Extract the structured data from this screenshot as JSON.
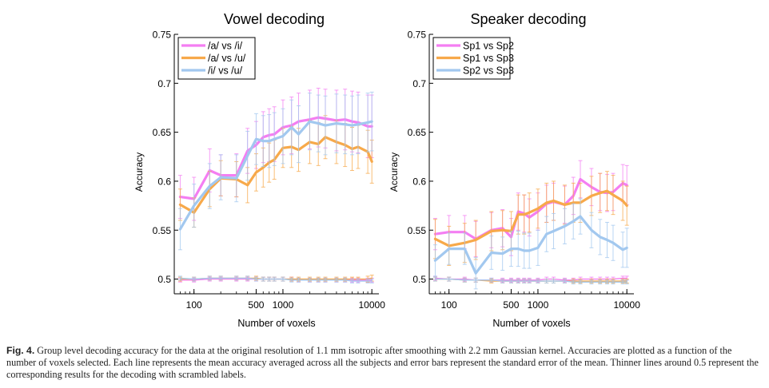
{
  "colors": {
    "pink": "#f47ef2",
    "orange": "#f7a94a",
    "blue": "#a2c8ef",
    "axis": "#000000",
    "text": "#222222"
  },
  "chart_data": [
    {
      "type": "line",
      "title": "Vowel decoding",
      "xlabel": "Number of voxels",
      "ylabel": "Accuracy",
      "xscale": "log",
      "xlim": [
        60,
        12000
      ],
      "ylim": [
        0.485,
        0.75
      ],
      "x_ticks": [
        100,
        500,
        1000,
        10000
      ],
      "x_tick_labels": [
        "100",
        "500",
        "1000",
        "10000"
      ],
      "y_ticks": [
        0.5,
        0.55,
        0.6,
        0.65,
        0.7,
        0.75
      ],
      "y_tick_labels": [
        "0.5",
        "0.55",
        "0.6",
        "0.65",
        "0.7",
        "0.75"
      ],
      "legend_position": "top-left",
      "x": [
        70,
        100,
        150,
        200,
        300,
        400,
        500,
        600,
        700,
        800,
        1000,
        1250,
        1500,
        2000,
        2500,
        3000,
        4000,
        5000,
        6000,
        7000,
        9000,
        10000
      ],
      "series": [
        {
          "name": "/a/ vs /i/",
          "color": "pink",
          "values": [
            0.584,
            0.582,
            0.611,
            0.606,
            0.606,
            0.631,
            0.637,
            0.645,
            0.647,
            0.648,
            0.655,
            0.657,
            0.661,
            0.663,
            0.665,
            0.664,
            0.662,
            0.663,
            0.661,
            0.66,
            0.656,
            0.656
          ],
          "errors": [
            0.022,
            0.022,
            0.022,
            0.021,
            0.022,
            0.023,
            0.024,
            0.026,
            0.027,
            0.028,
            0.028,
            0.029,
            0.029,
            0.03,
            0.03,
            0.03,
            0.031,
            0.031,
            0.031,
            0.031,
            0.032,
            0.032
          ]
        },
        {
          "name": "/a/ vs /u/",
          "color": "orange",
          "values": [
            0.576,
            0.568,
            0.592,
            0.603,
            0.602,
            0.596,
            0.609,
            0.614,
            0.619,
            0.622,
            0.634,
            0.635,
            0.632,
            0.64,
            0.638,
            0.645,
            0.64,
            0.637,
            0.633,
            0.635,
            0.63,
            0.62
          ],
          "errors": [
            0.016,
            0.015,
            0.018,
            0.018,
            0.018,
            0.018,
            0.019,
            0.02,
            0.02,
            0.02,
            0.02,
            0.021,
            0.022,
            0.022,
            0.022,
            0.022,
            0.022,
            0.022,
            0.022,
            0.022,
            0.022,
            0.022
          ]
        },
        {
          "name": "/i/ vs /u/",
          "color": "blue",
          "values": [
            0.551,
            0.575,
            0.595,
            0.604,
            0.603,
            0.626,
            0.643,
            0.641,
            0.641,
            0.643,
            0.646,
            0.655,
            0.648,
            0.661,
            0.659,
            0.657,
            0.659,
            0.658,
            0.657,
            0.658,
            0.66,
            0.661
          ],
          "errors": [
            0.021,
            0.022,
            0.023,
            0.023,
            0.024,
            0.025,
            0.026,
            0.026,
            0.027,
            0.027,
            0.028,
            0.028,
            0.029,
            0.029,
            0.029,
            0.03,
            0.03,
            0.03,
            0.03,
            0.03,
            0.03,
            0.03
          ]
        }
      ],
      "scrambled_series": [
        {
          "name": "/a/ vs /i/ (scrambled)",
          "color": "pink",
          "values": [
            0.499,
            0.499,
            0.5,
            0.5,
            0.5,
            0.5,
            0.5,
            0.5,
            0.5,
            0.5,
            0.5,
            0.5,
            0.499,
            0.499,
            0.499,
            0.499,
            0.499,
            0.499,
            0.499,
            0.499,
            0.499,
            0.499
          ],
          "errors": [
            0.002,
            0.002,
            0.002,
            0.002,
            0.002,
            0.002,
            0.002,
            0.002,
            0.002,
            0.002,
            0.002,
            0.002,
            0.002,
            0.002,
            0.002,
            0.002,
            0.002,
            0.002,
            0.002,
            0.002,
            0.002,
            0.002
          ]
        },
        {
          "name": "/a/ vs /u/ (scrambled)",
          "color": "orange",
          "values": [
            0.5,
            0.5,
            0.501,
            0.501,
            0.501,
            0.501,
            0.501,
            0.5,
            0.5,
            0.5,
            0.5,
            0.5,
            0.5,
            0.5,
            0.5,
            0.5,
            0.5,
            0.5,
            0.5,
            0.5,
            0.5,
            0.501
          ],
          "errors": [
            0.002,
            0.002,
            0.002,
            0.002,
            0.002,
            0.002,
            0.002,
            0.002,
            0.002,
            0.002,
            0.002,
            0.002,
            0.002,
            0.002,
            0.002,
            0.002,
            0.002,
            0.002,
            0.002,
            0.002,
            0.003,
            0.003
          ]
        },
        {
          "name": "/i/ vs /u/ (scrambled)",
          "color": "blue",
          "values": [
            0.501,
            0.5,
            0.501,
            0.501,
            0.501,
            0.501,
            0.5,
            0.5,
            0.5,
            0.5,
            0.5,
            0.499,
            0.499,
            0.499,
            0.499,
            0.499,
            0.499,
            0.499,
            0.498,
            0.498,
            0.498,
            0.498
          ],
          "errors": [
            0.002,
            0.002,
            0.002,
            0.002,
            0.002,
            0.002,
            0.002,
            0.002,
            0.002,
            0.002,
            0.002,
            0.002,
            0.002,
            0.002,
            0.002,
            0.002,
            0.002,
            0.002,
            0.002,
            0.002,
            0.002,
            0.002
          ]
        }
      ]
    },
    {
      "type": "line",
      "title": "Speaker decoding",
      "xlabel": "Number of voxels",
      "ylabel": "Accuracy",
      "xscale": "log",
      "xlim": [
        60,
        12000
      ],
      "ylim": [
        0.485,
        0.75
      ],
      "x_ticks": [
        100,
        500,
        1000,
        10000
      ],
      "x_tick_labels": [
        "100",
        "500",
        "1000",
        "10000"
      ],
      "y_ticks": [
        0.5,
        0.55,
        0.6,
        0.65,
        0.7,
        0.75
      ],
      "y_tick_labels": [
        "0.5",
        "0.55",
        "0.6",
        "0.65",
        "0.7",
        "0.75"
      ],
      "legend_position": "top-left",
      "x": [
        70,
        100,
        150,
        200,
        300,
        400,
        500,
        600,
        700,
        800,
        1000,
        1250,
        1500,
        2000,
        2500,
        3000,
        4000,
        5000,
        6000,
        7000,
        9000,
        10000
      ],
      "series": [
        {
          "name": "Sp1 vs Sp2",
          "color": "pink",
          "values": [
            0.546,
            0.548,
            0.548,
            0.541,
            0.55,
            0.552,
            0.543,
            0.569,
            0.567,
            0.563,
            0.569,
            0.577,
            0.579,
            0.576,
            0.585,
            0.602,
            0.594,
            0.589,
            0.588,
            0.589,
            0.598,
            0.596
          ],
          "errors": [
            0.016,
            0.017,
            0.017,
            0.018,
            0.018,
            0.019,
            0.019,
            0.019,
            0.019,
            0.019,
            0.019,
            0.019,
            0.019,
            0.019,
            0.019,
            0.019,
            0.019,
            0.019,
            0.019,
            0.019,
            0.019,
            0.02
          ]
        },
        {
          "name": "Sp1 vs Sp3",
          "color": "orange",
          "values": [
            0.541,
            0.534,
            0.537,
            0.54,
            0.549,
            0.55,
            0.549,
            0.566,
            0.566,
            0.568,
            0.572,
            0.578,
            0.58,
            0.576,
            0.578,
            0.578,
            0.585,
            0.588,
            0.59,
            0.586,
            0.58,
            0.575
          ],
          "errors": [
            0.02,
            0.02,
            0.02,
            0.02,
            0.02,
            0.02,
            0.02,
            0.02,
            0.02,
            0.02,
            0.02,
            0.02,
            0.02,
            0.02,
            0.02,
            0.02,
            0.02,
            0.02,
            0.02,
            0.02,
            0.02,
            0.02
          ]
        },
        {
          "name": "Sp2 vs Sp3",
          "color": "blue",
          "values": [
            0.519,
            0.531,
            0.531,
            0.506,
            0.527,
            0.526,
            0.531,
            0.531,
            0.529,
            0.529,
            0.532,
            0.546,
            0.549,
            0.554,
            0.559,
            0.564,
            0.55,
            0.543,
            0.54,
            0.537,
            0.53,
            0.532
          ],
          "errors": [
            0.016,
            0.016,
            0.016,
            0.016,
            0.017,
            0.017,
            0.018,
            0.018,
            0.018,
            0.018,
            0.018,
            0.018,
            0.018,
            0.018,
            0.018,
            0.018,
            0.018,
            0.018,
            0.018,
            0.018,
            0.018,
            0.02
          ]
        }
      ],
      "scrambled_series": [
        {
          "name": "Sp1 vs Sp2 (scrambled)",
          "color": "pink",
          "values": [
            0.501,
            0.5,
            0.5,
            0.499,
            0.499,
            0.499,
            0.499,
            0.499,
            0.499,
            0.499,
            0.499,
            0.5,
            0.5,
            0.499,
            0.499,
            0.5,
            0.5,
            0.5,
            0.5,
            0.5,
            0.501,
            0.501
          ],
          "errors": [
            0.002,
            0.002,
            0.002,
            0.002,
            0.002,
            0.002,
            0.002,
            0.002,
            0.002,
            0.002,
            0.002,
            0.002,
            0.002,
            0.002,
            0.002,
            0.002,
            0.002,
            0.002,
            0.002,
            0.002,
            0.002,
            0.002
          ]
        },
        {
          "name": "Sp1 vs Sp3 (scrambled)",
          "color": "orange",
          "values": [
            0.5,
            0.5,
            0.499,
            0.499,
            0.498,
            0.498,
            0.498,
            0.498,
            0.498,
            0.498,
            0.498,
            0.498,
            0.498,
            0.498,
            0.498,
            0.498,
            0.498,
            0.498,
            0.498,
            0.498,
            0.498,
            0.498
          ],
          "errors": [
            0.002,
            0.002,
            0.002,
            0.002,
            0.002,
            0.002,
            0.002,
            0.002,
            0.002,
            0.002,
            0.002,
            0.002,
            0.002,
            0.002,
            0.002,
            0.002,
            0.002,
            0.002,
            0.002,
            0.002,
            0.002,
            0.002
          ]
        },
        {
          "name": "Sp2 vs Sp3 (scrambled)",
          "color": "blue",
          "values": [
            0.5,
            0.5,
            0.499,
            0.499,
            0.499,
            0.498,
            0.498,
            0.498,
            0.498,
            0.498,
            0.498,
            0.498,
            0.498,
            0.498,
            0.497,
            0.497,
            0.497,
            0.497,
            0.497,
            0.497,
            0.497,
            0.497
          ],
          "errors": [
            0.002,
            0.002,
            0.002,
            0.002,
            0.002,
            0.002,
            0.002,
            0.002,
            0.002,
            0.002,
            0.002,
            0.002,
            0.002,
            0.002,
            0.002,
            0.002,
            0.002,
            0.002,
            0.002,
            0.002,
            0.002,
            0.002
          ]
        }
      ]
    }
  ],
  "caption": {
    "label": "Fig. 4.",
    "text": "Group level decoding accuracy for the data at the original resolution of 1.1 mm isotropic after smoothing with 2.2 mm Gaussian kernel. Accuracies are plotted as a function of the number of voxels selected. Each line represents the mean accuracy averaged across all the subjects and error bars represent the standard error of the mean. Thinner lines around 0.5 represent the corresponding results for the decoding with scrambled labels."
  }
}
